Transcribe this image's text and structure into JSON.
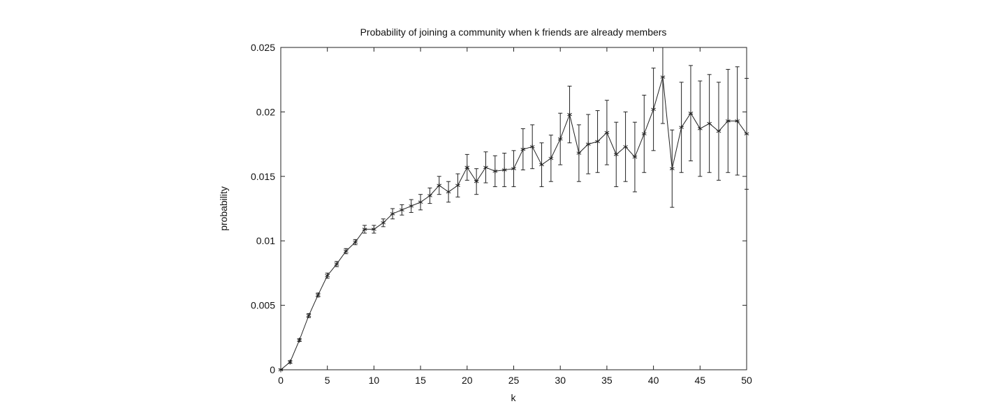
{
  "chart_data": {
    "type": "line",
    "title": "Probability of joining a community when k friends are already members",
    "xlabel": "k",
    "ylabel": "probability",
    "xlim": [
      0,
      50
    ],
    "ylim": [
      0,
      0.025
    ],
    "xticks": [
      "0",
      "5",
      "10",
      "15",
      "20",
      "25",
      "30",
      "35",
      "40",
      "45",
      "50"
    ],
    "yticks": [
      "0",
      "0.005",
      "0.01",
      "0.015",
      "0.02",
      "0.025"
    ],
    "grid": false,
    "marker": "asterisk",
    "line_color": "#222222",
    "series": [
      {
        "x": [
          0,
          1,
          2,
          3,
          4,
          5,
          6,
          7,
          8,
          9,
          10,
          11,
          12,
          13,
          14,
          15,
          16,
          17,
          18,
          19,
          20,
          21,
          22,
          23,
          24,
          25,
          26,
          27,
          28,
          29,
          30,
          31,
          32,
          33,
          34,
          35,
          36,
          37,
          38,
          39,
          40,
          41,
          42,
          43,
          44,
          45,
          46,
          47,
          48,
          49,
          50
        ],
        "y": [
          0.0,
          0.0006,
          0.0023,
          0.0042,
          0.0058,
          0.0073,
          0.0082,
          0.0092,
          0.0099,
          0.0109,
          0.0109,
          0.0114,
          0.0121,
          0.0124,
          0.0127,
          0.013,
          0.0135,
          0.0143,
          0.0138,
          0.0143,
          0.0157,
          0.0146,
          0.0157,
          0.0154,
          0.0155,
          0.0156,
          0.0171,
          0.0173,
          0.0159,
          0.0164,
          0.0179,
          0.0198,
          0.0168,
          0.0175,
          0.0177,
          0.0184,
          0.0167,
          0.0173,
          0.0165,
          0.0183,
          0.0202,
          0.0227,
          0.0156,
          0.0188,
          0.0199,
          0.0187,
          0.0191,
          0.0185,
          0.0193,
          0.0193,
          0.0183
        ],
        "yerr": [
          5e-05,
          0.0001,
          0.0001,
          0.00015,
          0.00015,
          0.0002,
          0.0002,
          0.0002,
          0.0002,
          0.0003,
          0.0003,
          0.0003,
          0.0004,
          0.0004,
          0.0005,
          0.0006,
          0.0006,
          0.0007,
          0.0008,
          0.0009,
          0.001,
          0.001,
          0.0012,
          0.0012,
          0.0013,
          0.0014,
          0.0016,
          0.0017,
          0.0017,
          0.0018,
          0.002,
          0.0022,
          0.0022,
          0.0023,
          0.0024,
          0.0025,
          0.0025,
          0.0027,
          0.0027,
          0.003,
          0.0032,
          0.0036,
          0.003,
          0.0035,
          0.0037,
          0.0037,
          0.0038,
          0.0038,
          0.004,
          0.0042,
          0.0043
        ]
      }
    ]
  }
}
